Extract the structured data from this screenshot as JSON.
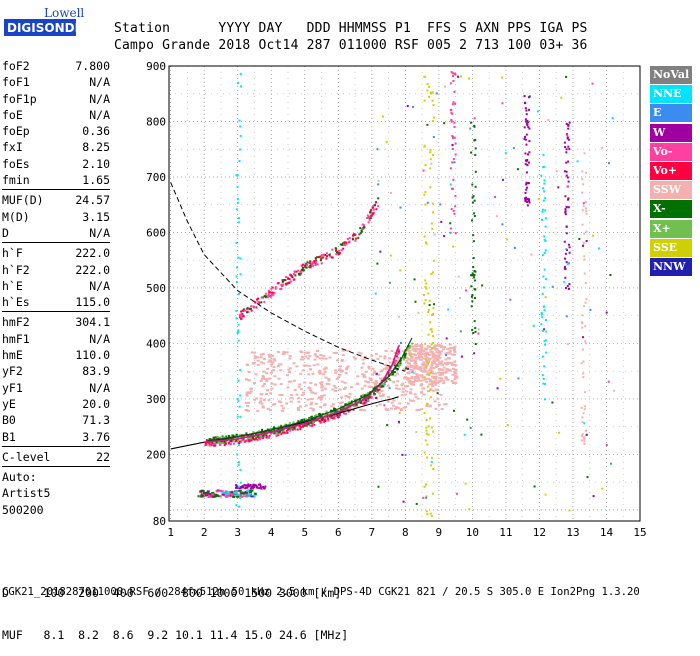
{
  "logo": {
    "brand_top": "Lowell",
    "brand_main": "DIGISONDE"
  },
  "header": {
    "line1": "Station      YYYY DAY   DDD HHMMSS P1  FFS S AXN PPS IGA PS",
    "line2": "Campo Grande 2018 Oct14 287 011000 RSF 005 2 713 100 03+ 36"
  },
  "params": {
    "group1": [
      {
        "label": "foF2",
        "value": "7.800"
      },
      {
        "label": "foF1",
        "value": "N/A"
      },
      {
        "label": "foF1p",
        "value": "N/A"
      },
      {
        "label": "foE",
        "value": "N/A"
      },
      {
        "label": "foEp",
        "value": "0.36"
      },
      {
        "label": "fxI",
        "value": "8.25"
      },
      {
        "label": "foEs",
        "value": "2.10"
      },
      {
        "label": "fmin",
        "value": "1.65"
      }
    ],
    "group2": [
      {
        "label": "MUF(D)",
        "value": "24.57"
      },
      {
        "label": "M(D)",
        "value": "3.15"
      },
      {
        "label": "D",
        "value": "N/A"
      }
    ],
    "group3": [
      {
        "label": "h`F",
        "value": "222.0"
      },
      {
        "label": "h`F2",
        "value": "222.0"
      },
      {
        "label": "h`E",
        "value": "N/A"
      },
      {
        "label": "h`Es",
        "value": "115.0"
      }
    ],
    "group4": [
      {
        "label": "hmF2",
        "value": "304.1"
      },
      {
        "label": "hmF1",
        "value": "N/A"
      },
      {
        "label": "hmE",
        "value": "110.0"
      },
      {
        "label": "yF2",
        "value": "83.9"
      },
      {
        "label": "yF1",
        "value": "N/A"
      },
      {
        "label": "yE",
        "value": "20.0"
      },
      {
        "label": "B0",
        "value": "71.3"
      },
      {
        "label": "B1",
        "value": "3.76"
      }
    ],
    "group5": [
      {
        "label": "C-level",
        "value": "22"
      }
    ],
    "tail": [
      "Auto:",
      "Artist5",
      "500200"
    ]
  },
  "legend": [
    {
      "label": "NoVal",
      "color": "#808080"
    },
    {
      "label": "NNE",
      "color": "#00e5ff"
    },
    {
      "label": "E",
      "color": "#3b8cf0"
    },
    {
      "label": "W",
      "color": "#a000a0"
    },
    {
      "label": "Vo-",
      "color": "#ff40a0"
    },
    {
      "label": "Vo+",
      "color": "#ff0040"
    },
    {
      "label": "SSW",
      "color": "#f4b0b0"
    },
    {
      "label": "X-",
      "color": "#007000"
    },
    {
      "label": "X+",
      "color": "#70c050"
    },
    {
      "label": "SSE",
      "color": "#d0d000"
    },
    {
      "label": "NNW",
      "color": "#2020b0"
    }
  ],
  "bottom_table": {
    "row1": "D     100  200  400  600  800 1000 1500 3000 [km]",
    "row2": "MUF   8.1  8.2  8.6  9.2 10.1 11.4 15.0 24.6 [MHz]"
  },
  "footer": "CGK21_2018287011000.RSF / 284fx512h 50 kHz 2.5 km / DPS-4D CGK21 821 / 20.5 S 305.0 E Ion2Png 1.3.20",
  "chart_data": {
    "type": "scatter",
    "x_ticks": [
      1,
      2,
      3,
      4,
      5,
      6,
      7,
      8,
      9,
      10,
      11,
      12,
      13,
      14,
      15
    ],
    "y_ticks": [
      80,
      200,
      300,
      400,
      500,
      600,
      700,
      800,
      900
    ],
    "xlim": [
      0.95,
      15
    ],
    "ylim": [
      80,
      900
    ],
    "grid": true,
    "legend_position": "right",
    "o_trace": [
      [
        2.0,
        222
      ],
      [
        3,
        228
      ],
      [
        4,
        240
      ],
      [
        5,
        256
      ],
      [
        6,
        276
      ],
      [
        6.8,
        300
      ],
      [
        7.3,
        330
      ],
      [
        7.6,
        360
      ],
      [
        7.8,
        395
      ]
    ],
    "x_trace": [
      [
        2.1,
        225
      ],
      [
        3,
        232
      ],
      [
        4,
        244
      ],
      [
        5,
        260
      ],
      [
        6,
        282
      ],
      [
        6.9,
        308
      ],
      [
        7.5,
        340
      ],
      [
        7.9,
        375
      ],
      [
        8.2,
        410
      ]
    ],
    "profile_line": [
      [
        1.0,
        210
      ],
      [
        2,
        222
      ],
      [
        3,
        232
      ],
      [
        4,
        244
      ],
      [
        5,
        258
      ],
      [
        6,
        274
      ],
      [
        6.8,
        288
      ],
      [
        7.3,
        296
      ],
      [
        7.6,
        300
      ],
      [
        7.8,
        304.1
      ]
    ],
    "muf_curve": [
      [
        1.0,
        690
      ],
      [
        1.5,
        620
      ],
      [
        2,
        560
      ],
      [
        3,
        495
      ],
      [
        4,
        455
      ],
      [
        5,
        422
      ],
      [
        6,
        393
      ],
      [
        7,
        370
      ],
      [
        8,
        350
      ]
    ],
    "o_echo2": [
      [
        3.0,
        450
      ],
      [
        4,
        495
      ],
      [
        5,
        540
      ],
      [
        6,
        570
      ],
      [
        6.6,
        600
      ],
      [
        7,
        640
      ],
      [
        7.2,
        660
      ]
    ],
    "es_band": [
      [
        1.8,
        130
      ],
      [
        3.5,
        130
      ]
    ]
  }
}
